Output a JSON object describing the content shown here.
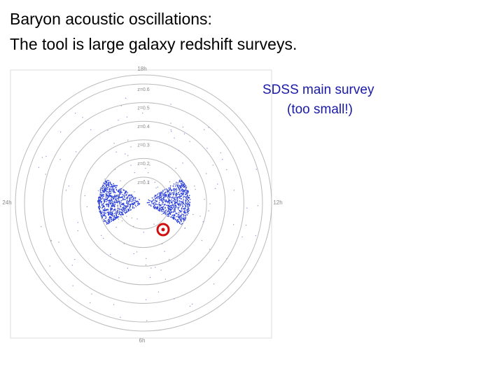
{
  "title": {
    "line1": "Baryon acoustic oscillations:",
    "line2": "The tool is large galaxy redshift surveys."
  },
  "figure": {
    "angle_labels": [
      "18h",
      "24h",
      "12h",
      "6h"
    ],
    "redshift_labels": [
      "z=0.6",
      "z=0.5",
      "z=0.4",
      "z=0.3",
      "z=0.2",
      "z=0.1"
    ]
  },
  "annotation": {
    "line1": "SDSS main survey",
    "line2": "(too small!)"
  }
}
